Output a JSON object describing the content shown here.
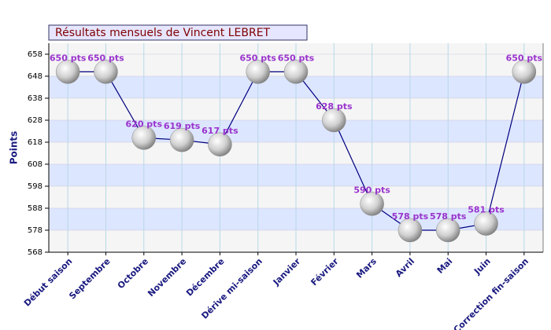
{
  "chart_data": {
    "type": "line",
    "title": "Résultats mensuels de Vincent LEBRET",
    "y_label": "Points",
    "categories": [
      "Début saison",
      "Septembre",
      "Octobre",
      "Novembre",
      "Décembre",
      "Dérive mi-saison",
      "Janvier",
      "Février",
      "Mars",
      "Avril",
      "Mai",
      "Juin",
      "Correction fin-saison"
    ],
    "values": [
      650,
      650,
      620,
      619,
      617,
      650,
      650,
      628,
      590,
      578,
      578,
      581,
      650
    ],
    "value_labels": [
      "650 pts",
      "650 pts",
      "620 pts",
      "619 pts",
      "617 pts",
      "650 pts",
      "650 pts",
      "628 pts",
      "590 pts",
      "578 pts",
      "578 pts",
      "581 pts",
      "650 pts"
    ],
    "color": "#000080",
    "ylim": [
      568,
      663
    ],
    "yticks": [
      568,
      578,
      588,
      598,
      608,
      618,
      628,
      638,
      648,
      658
    ],
    "grid": true
  }
}
